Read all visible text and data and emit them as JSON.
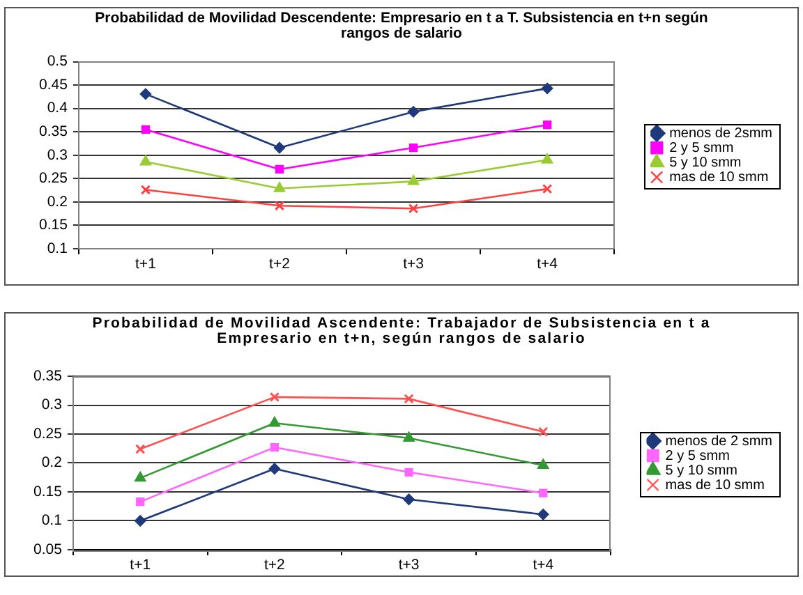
{
  "chart_data": [
    {
      "type": "line",
      "title": "Probabilidad de Movilidad Descendente: Empresario en t a T. Subsistencia en t+n según rangos de salario",
      "categories": [
        "t+1",
        "t+2",
        "t+3",
        "t+4"
      ],
      "series": [
        {
          "name": "menos de 2smm",
          "color": "#1f3a7a",
          "marker": "diamond",
          "values": [
            0.431,
            0.316,
            0.393,
            0.443
          ]
        },
        {
          "name": "2 y 5 smm",
          "color": "#ff00ff",
          "marker": "square",
          "values": [
            0.355,
            0.27,
            0.316,
            0.365
          ]
        },
        {
          "name": "5 y 10 smm",
          "color": "#99cc33",
          "marker": "triangle",
          "values": [
            0.286,
            0.229,
            0.244,
            0.29
          ]
        },
        {
          "name": "mas de 10 smm",
          "color": "#ff4040",
          "marker": "cross",
          "values": [
            0.226,
            0.192,
            0.186,
            0.228
          ]
        }
      ],
      "ylim": [
        0.1,
        0.5
      ],
      "yticks": [
        0.1,
        0.15,
        0.2,
        0.25,
        0.3,
        0.35,
        0.4,
        0.45,
        0.5
      ],
      "grid": "y",
      "legend": "right",
      "line_style": "solid"
    },
    {
      "type": "line",
      "title": "Probabilidad de Movilidad Ascendente: Trabajador de Subsistencia en t a Empresario en t+n, según rangos de salario",
      "categories": [
        "t+1",
        "t+2",
        "t+3",
        "t+4"
      ],
      "series": [
        {
          "name": "menos de 2 smm",
          "color": "#1f3a7a",
          "marker": "diamond",
          "values": [
            0.1,
            0.19,
            0.137,
            0.111
          ]
        },
        {
          "name": "2 y 5 smm",
          "color": "#ff66ff",
          "marker": "square",
          "values": [
            0.133,
            0.227,
            0.184,
            0.148
          ]
        },
        {
          "name": "5 y 10 smm",
          "color": "#339933",
          "marker": "triangle",
          "values": [
            0.174,
            0.269,
            0.243,
            0.196
          ]
        },
        {
          "name": "mas de 10 smm",
          "color": "#ff5050",
          "marker": "cross",
          "values": [
            0.224,
            0.314,
            0.311,
            0.254
          ]
        }
      ],
      "ylim": [
        0.05,
        0.35
      ],
      "yticks": [
        0.05,
        0.1,
        0.15,
        0.2,
        0.25,
        0.3,
        0.35
      ],
      "grid": "y",
      "legend": "right",
      "line_style": "solid"
    }
  ]
}
